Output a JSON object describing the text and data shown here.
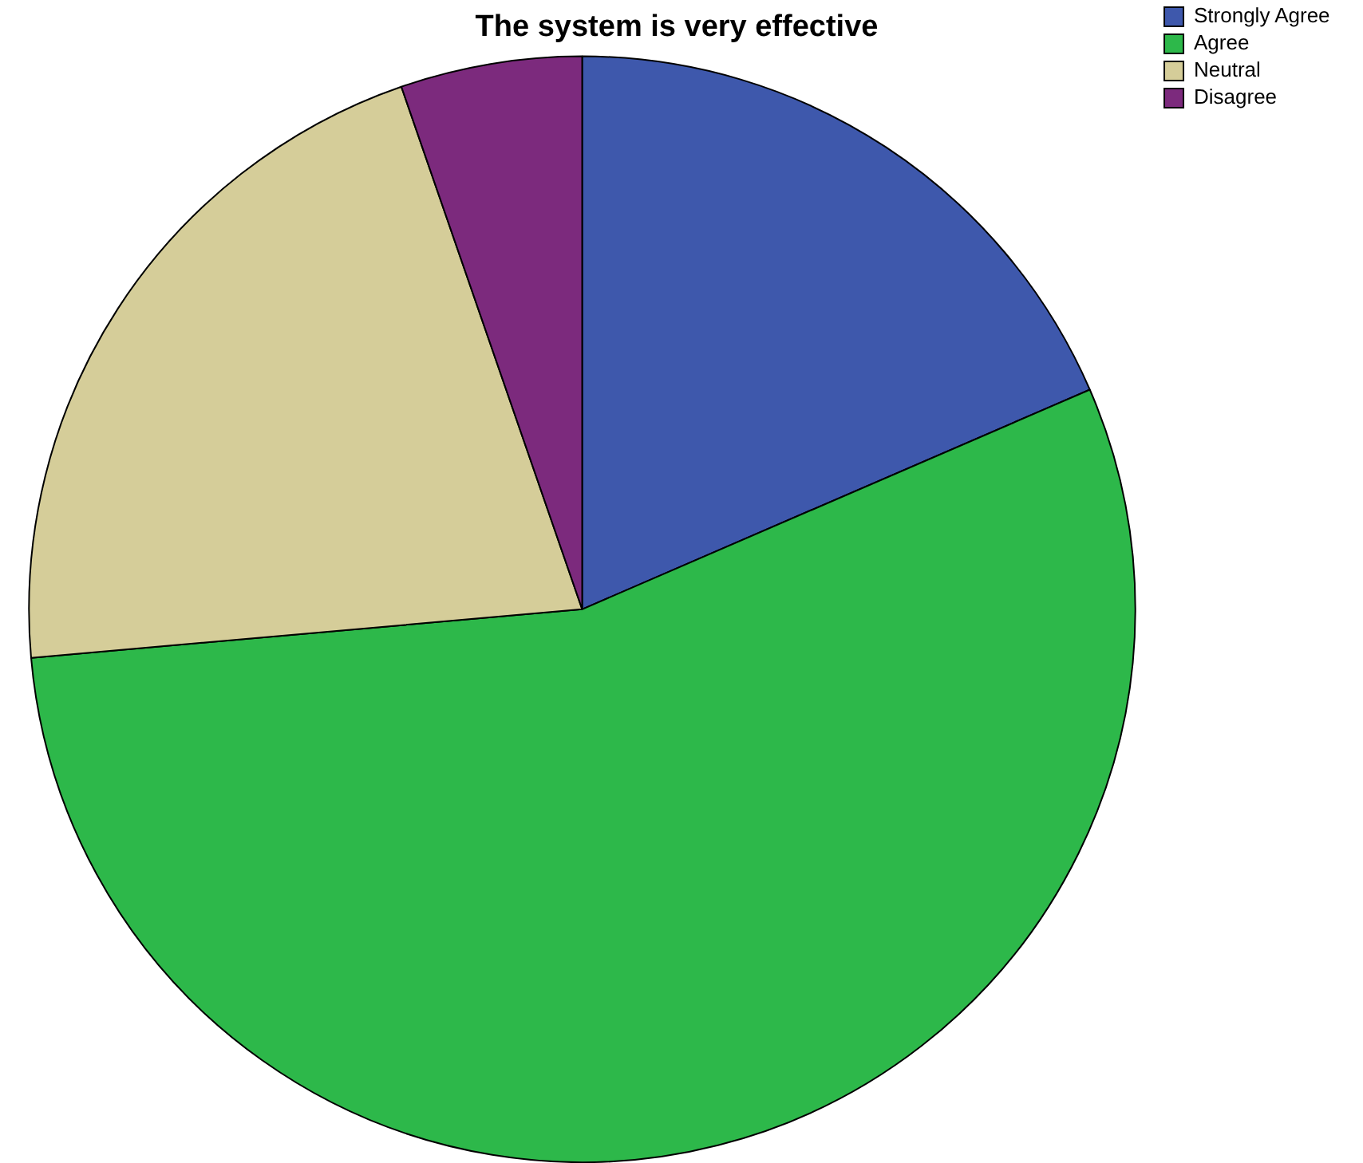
{
  "chart_data": {
    "type": "pie",
    "title": "The system is very effective",
    "categories": [
      "Strongly Agree",
      "Agree",
      "Neutral",
      "Disagree"
    ],
    "values": [
      18.5,
      55.1,
      21.1,
      5.3
    ],
    "colors": [
      "#3e58ac",
      "#2db84a",
      "#d5cd99",
      "#7c2a7d"
    ],
    "legend": "top right"
  }
}
